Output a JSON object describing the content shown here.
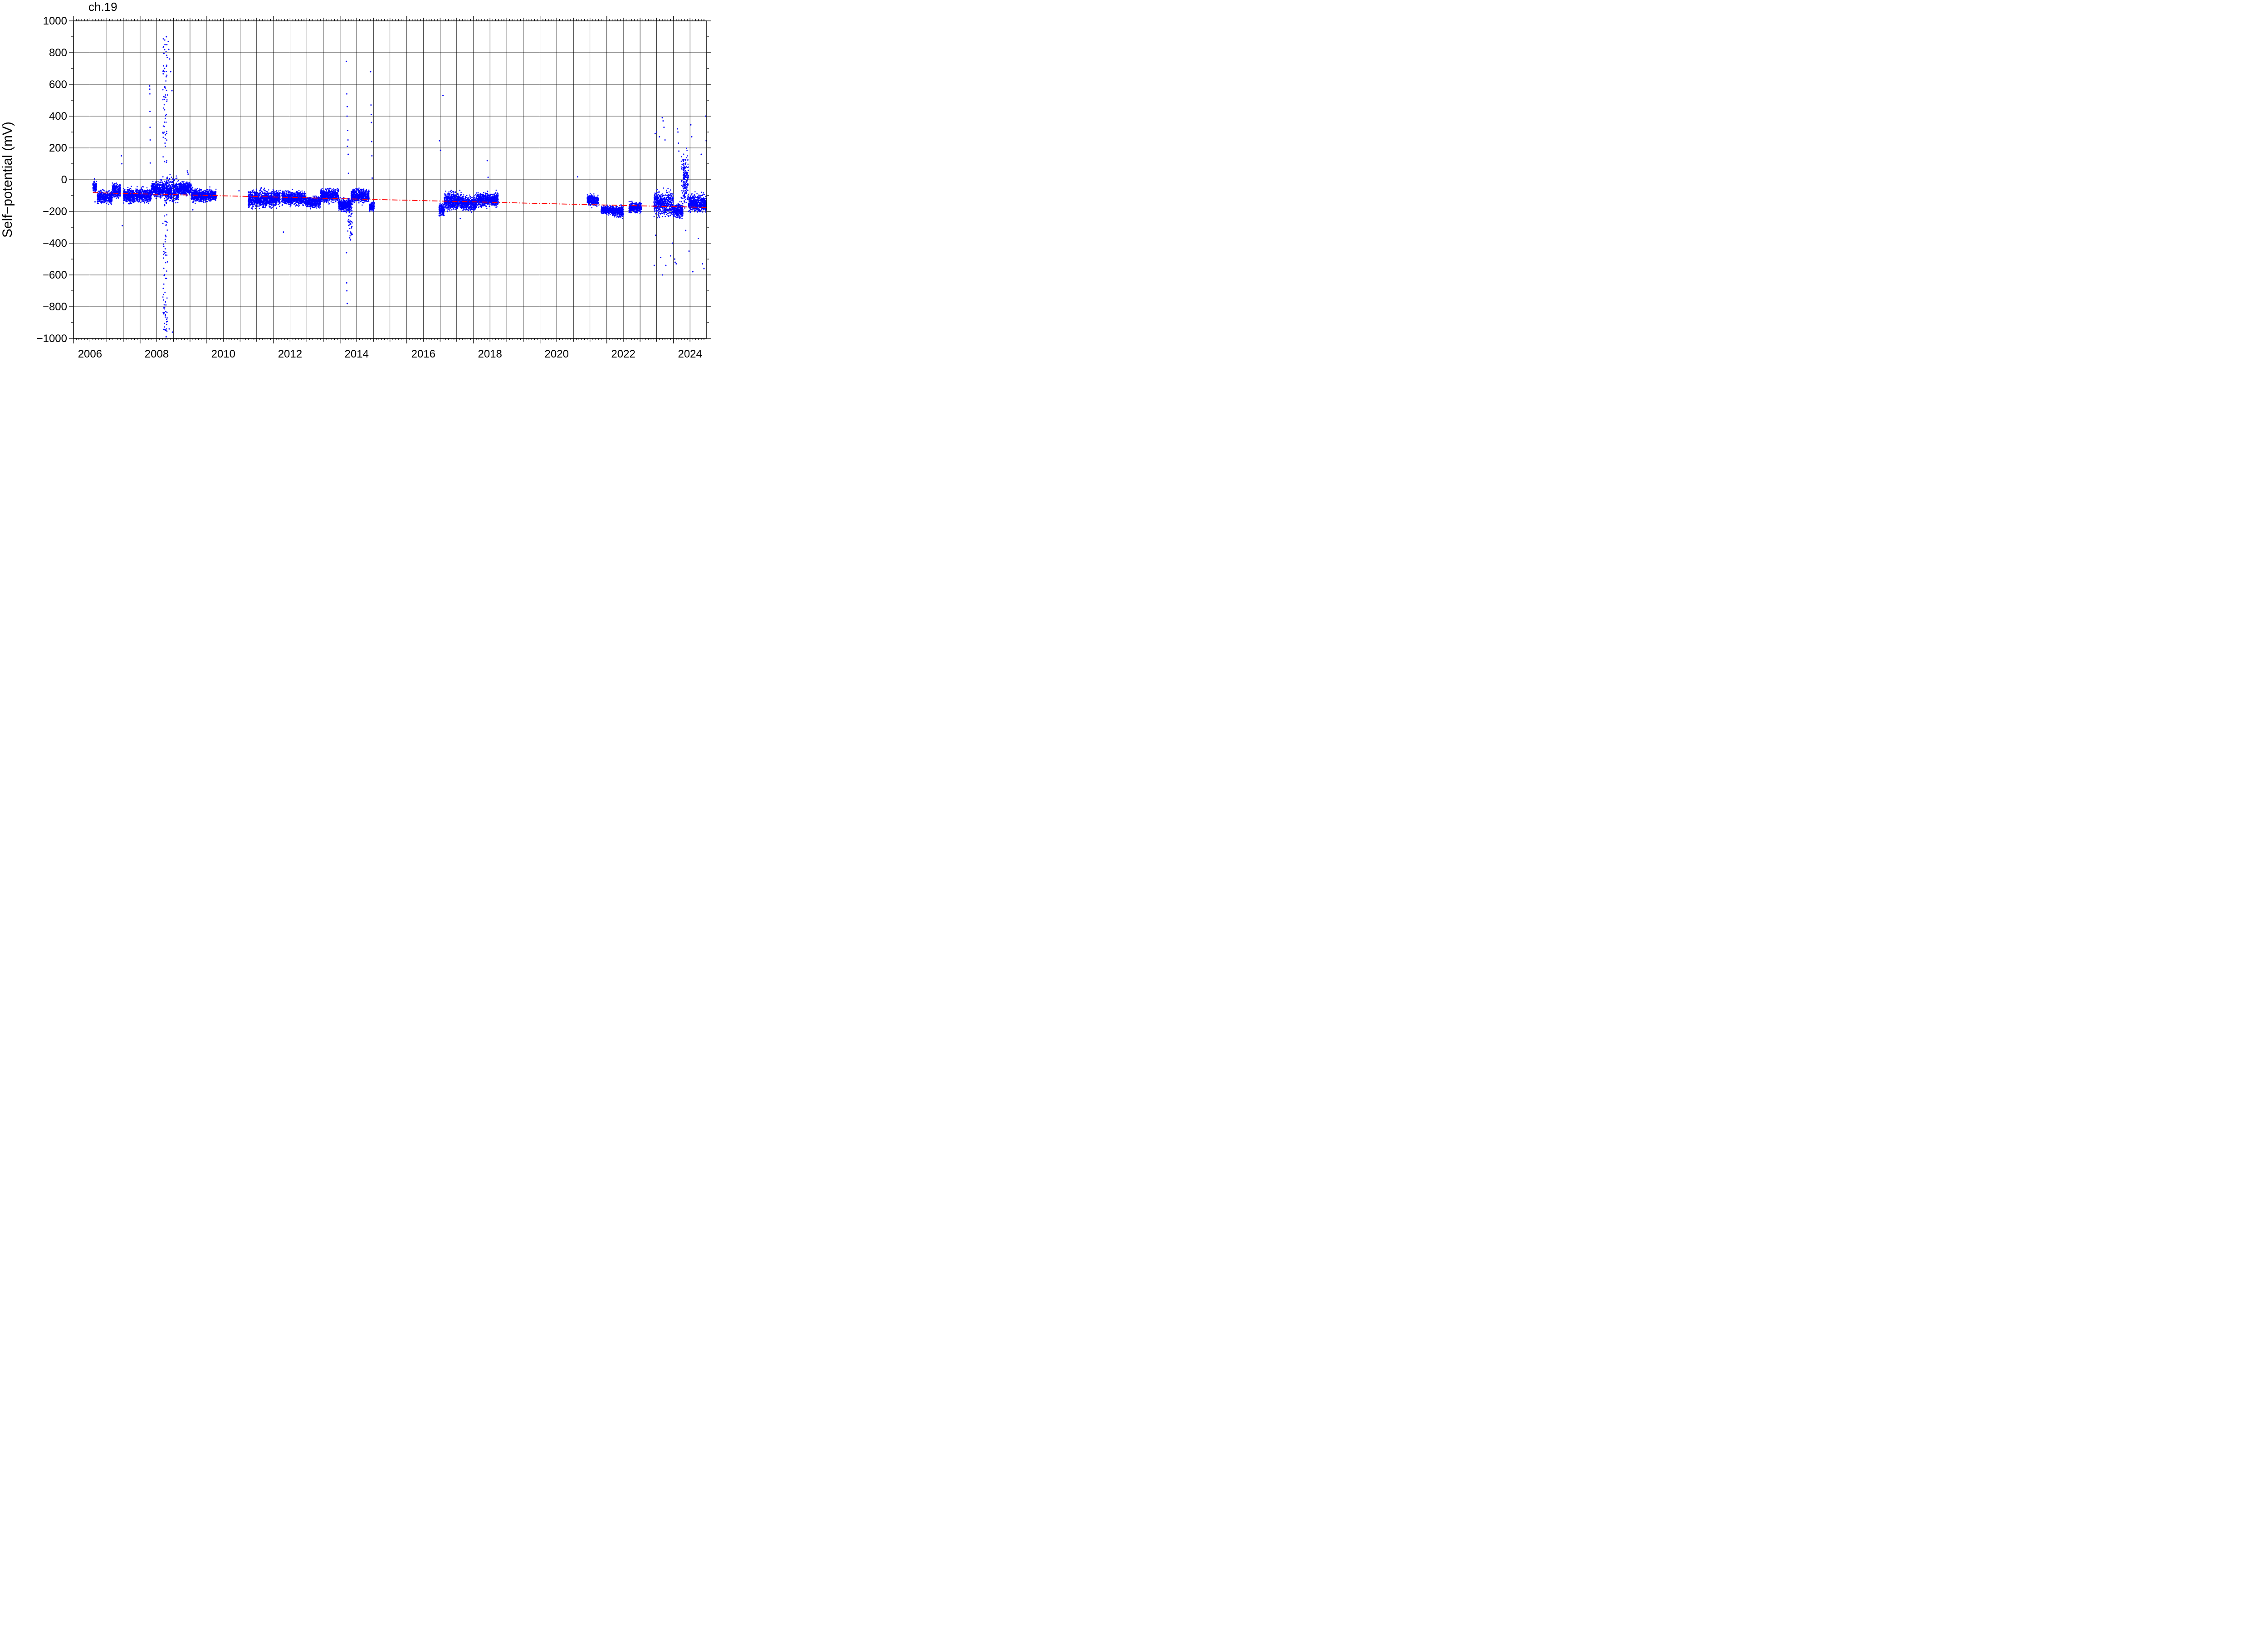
{
  "chart_data": {
    "type": "scatter",
    "title": "ch.19",
    "xlabel": "",
    "ylabel": "Self−potential (mV)",
    "xlim": [
      "2006-01-01",
      "2024-12-31"
    ],
    "ylim": [
      -1000,
      1000
    ],
    "grid": true,
    "x_ticks": [
      "2006",
      "2008",
      "2010",
      "2012",
      "2014",
      "2016",
      "2018",
      "2020",
      "2022",
      "2024"
    ],
    "y_ticks": [
      "1000",
      "800",
      "600",
      "400",
      "200",
      "0",
      "−200",
      "−400",
      "−600",
      "−800",
      "−1000"
    ],
    "colors": {
      "observations": "#0000ff",
      "trend": "#ff0000",
      "grid": "#000000"
    },
    "trend": {
      "style": "dash-dot",
      "x": [
        "2006-08-01",
        "2024-12-31"
      ],
      "y": [
        -82,
        -175
      ]
    },
    "series": [
      {
        "segments": [
          {
            "start": "2006-08-01",
            "end": "2006-09-10",
            "mean": -45,
            "spread": 15
          },
          {
            "start": "2006-09-20",
            "end": "2007-03-01",
            "mean": -110,
            "spread": 18
          },
          {
            "start": "2007-03-01",
            "end": "2007-06-01",
            "mean": -70,
            "spread": 20
          },
          {
            "start": "2007-07-01",
            "end": "2008-05-01",
            "mean": -100,
            "spread": 20
          },
          {
            "start": "2008-05-01",
            "end": "2008-10-01",
            "mean": -60,
            "spread": 22
          },
          {
            "start": "2008-10-01",
            "end": "2009-02-28",
            "mean": -70,
            "spread": 35
          },
          {
            "start": "2009-03-01",
            "end": "2009-07-15",
            "mean": -55,
            "spread": 18
          },
          {
            "start": "2009-07-15",
            "end": "2010-04-15",
            "mean": -100,
            "spread": 18
          },
          {
            "start": "2011-04-01",
            "end": "2012-03-15",
            "mean": -120,
            "spread": 25
          },
          {
            "start": "2012-04-01",
            "end": "2012-12-15",
            "mean": -115,
            "spread": 20
          },
          {
            "start": "2012-12-15",
            "end": "2013-06-01",
            "mean": -140,
            "spread": 18
          },
          {
            "start": "2013-06-01",
            "end": "2013-12-15",
            "mean": -100,
            "spread": 20
          },
          {
            "start": "2013-12-15",
            "end": "2014-05-01",
            "mean": -160,
            "spread": 18
          },
          {
            "start": "2014-05-01",
            "end": "2014-11-15",
            "mean": -100,
            "spread": 20
          },
          {
            "start": "2014-11-20",
            "end": "2015-01-10",
            "mean": -170,
            "spread": 12
          },
          {
            "start": "2016-12-20",
            "end": "2017-02-15",
            "mean": -190,
            "spread": 20
          },
          {
            "start": "2017-02-15",
            "end": "2017-09-01",
            "mean": -135,
            "spread": 25
          },
          {
            "start": "2017-09-01",
            "end": "2018-02-01",
            "mean": -150,
            "spread": 20
          },
          {
            "start": "2018-02-01",
            "end": "2018-10-01",
            "mean": -125,
            "spread": 20
          },
          {
            "start": "2021-06-01",
            "end": "2021-10-01",
            "mean": -130,
            "spread": 15
          },
          {
            "start": "2021-11-01",
            "end": "2022-03-01",
            "mean": -190,
            "spread": 12
          },
          {
            "start": "2022-03-01",
            "end": "2022-07-01",
            "mean": -200,
            "spread": 15
          },
          {
            "start": "2022-09-01",
            "end": "2023-01-15",
            "mean": -175,
            "spread": 15
          },
          {
            "start": "2023-06-01",
            "end": "2023-12-31",
            "mean": -150,
            "spread": 35
          },
          {
            "start": "2023-12-31",
            "end": "2024-04-15",
            "mean": -195,
            "spread": 20
          },
          {
            "start": "2024-04-15",
            "end": "2024-06-15",
            "mean": 10,
            "spread": 70
          },
          {
            "start": "2024-06-15",
            "end": "2024-12-31",
            "mean": -150,
            "spread": 25
          }
        ],
        "outliers": [
          {
            "x": "2006-08-20",
            "y": 5
          },
          {
            "x": "2006-08-25",
            "y": -140
          },
          {
            "x": "2007-06-10",
            "y": 150
          },
          {
            "x": "2007-06-15",
            "y": 100
          },
          {
            "x": "2007-06-20",
            "y": -290
          },
          {
            "x": "2008-04-15",
            "y": 590
          },
          {
            "x": "2008-04-16",
            "y": 570
          },
          {
            "x": "2008-04-17",
            "y": 540
          },
          {
            "x": "2008-04-18",
            "y": 430
          },
          {
            "x": "2008-04-19",
            "y": 330
          },
          {
            "x": "2008-04-20",
            "y": 250
          },
          {
            "x": "2008-04-21",
            "y": 105
          },
          {
            "x": "2008-09-20",
            "y": 680
          },
          {
            "x": "2008-09-25",
            "y": 440
          },
          {
            "x": "2008-09-30",
            "y": 230
          },
          {
            "x": "2008-10-05",
            "y": -770
          },
          {
            "x": "2008-10-10",
            "y": -950
          },
          {
            "x": "2008-10-15",
            "y": 900
          },
          {
            "x": "2008-10-20",
            "y": 850
          },
          {
            "x": "2008-10-25",
            "y": 770
          },
          {
            "x": "2008-11-05",
            "y": 870
          },
          {
            "x": "2008-11-10",
            "y": 820
          },
          {
            "x": "2008-11-20",
            "y": 760
          },
          {
            "x": "2008-12-01",
            "y": 680
          },
          {
            "x": "2008-12-15",
            "y": 560
          },
          {
            "x": "2008-10-08",
            "y": -830
          },
          {
            "x": "2008-10-18",
            "y": -880
          },
          {
            "x": "2008-11-15",
            "y": -940
          },
          {
            "x": "2008-12-20",
            "y": -960
          },
          {
            "x": "2008-10-12",
            "y": -990
          },
          {
            "x": "2009-06-01",
            "y": 55
          },
          {
            "x": "2009-06-05",
            "y": 45
          },
          {
            "x": "2009-06-10",
            "y": 35
          },
          {
            "x": "2009-08-01",
            "y": -190
          },
          {
            "x": "2010-12-20",
            "y": -70
          },
          {
            "x": "2012-04-20",
            "y": -330
          },
          {
            "x": "2014-03-10",
            "y": 745
          },
          {
            "x": "2014-03-15",
            "y": 540
          },
          {
            "x": "2014-03-20",
            "y": 460
          },
          {
            "x": "2014-03-18",
            "y": 400
          },
          {
            "x": "2014-03-25",
            "y": 310
          },
          {
            "x": "2014-03-28",
            "y": 250
          },
          {
            "x": "2014-03-22",
            "y": 210
          },
          {
            "x": "2014-03-30",
            "y": 160
          },
          {
            "x": "2014-04-02",
            "y": 40
          },
          {
            "x": "2014-03-12",
            "y": -460
          },
          {
            "x": "2014-03-14",
            "y": -650
          },
          {
            "x": "2014-03-16",
            "y": -700
          },
          {
            "x": "2014-03-20",
            "y": -780
          },
          {
            "x": "2014-04-25",
            "y": -380
          },
          {
            "x": "2014-04-26",
            "y": -330
          },
          {
            "x": "2014-04-27",
            "y": -280
          },
          {
            "x": "2014-04-28",
            "y": -230
          },
          {
            "x": "2014-12-01",
            "y": 680
          },
          {
            "x": "2014-12-05",
            "y": 470
          },
          {
            "x": "2014-12-08",
            "y": 410
          },
          {
            "x": "2014-12-10",
            "y": 360
          },
          {
            "x": "2014-12-12",
            "y": 240
          },
          {
            "x": "2014-12-15",
            "y": 150
          },
          {
            "x": "2014-12-18",
            "y": 10
          },
          {
            "x": "2016-12-25",
            "y": 245
          },
          {
            "x": "2017-01-05",
            "y": 185
          },
          {
            "x": "2017-02-01",
            "y": 530
          },
          {
            "x": "2017-08-10",
            "y": -245
          },
          {
            "x": "2018-06-01",
            "y": 120
          },
          {
            "x": "2018-06-10",
            "y": 15
          },
          {
            "x": "2021-02-15",
            "y": 18
          },
          {
            "x": "2023-06-05",
            "y": -540
          },
          {
            "x": "2023-06-15",
            "y": 290
          },
          {
            "x": "2023-07-01",
            "y": 300
          },
          {
            "x": "2023-08-01",
            "y": 270
          },
          {
            "x": "2023-09-01",
            "y": 390
          },
          {
            "x": "2023-09-10",
            "y": 370
          },
          {
            "x": "2023-09-20",
            "y": 330
          },
          {
            "x": "2023-10-01",
            "y": 250
          },
          {
            "x": "2023-06-20",
            "y": -350
          },
          {
            "x": "2023-08-15",
            "y": -490
          },
          {
            "x": "2023-09-05",
            "y": -600
          },
          {
            "x": "2023-10-10",
            "y": -540
          },
          {
            "x": "2023-12-01",
            "y": -480
          },
          {
            "x": "2023-12-20",
            "y": -400
          },
          {
            "x": "2024-01-15",
            "y": -500
          },
          {
            "x": "2024-01-20",
            "y": -520
          },
          {
            "x": "2024-02-01",
            "y": -530
          },
          {
            "x": "2024-02-15",
            "y": 320
          },
          {
            "x": "2024-02-20",
            "y": 300
          },
          {
            "x": "2024-02-25",
            "y": 230
          },
          {
            "x": "2024-03-01",
            "y": 180
          },
          {
            "x": "2024-05-15",
            "y": -320
          },
          {
            "x": "2024-06-20",
            "y": -450
          },
          {
            "x": "2024-07-10",
            "y": 345
          },
          {
            "x": "2024-07-20",
            "y": 270
          },
          {
            "x": "2024-08-01",
            "y": -580
          },
          {
            "x": "2024-10-01",
            "y": -370
          },
          {
            "x": "2024-11-01",
            "y": 160
          },
          {
            "x": "2024-11-15",
            "y": -530
          },
          {
            "x": "2024-12-01",
            "y": -560
          },
          {
            "x": "2024-12-20",
            "y": 400
          },
          {
            "x": "2024-12-25",
            "y": 245
          }
        ],
        "columns": [
          {
            "x": "2008-10-01",
            "ymin": -990,
            "ymax": 900,
            "n": 140
          },
          {
            "x": "2014-04-20",
            "ymin": -380,
            "ymax": -120,
            "n": 60
          },
          {
            "x": "2024-04-20",
            "ymin": -180,
            "ymax": 150,
            "n": 40
          }
        ]
      }
    ]
  }
}
